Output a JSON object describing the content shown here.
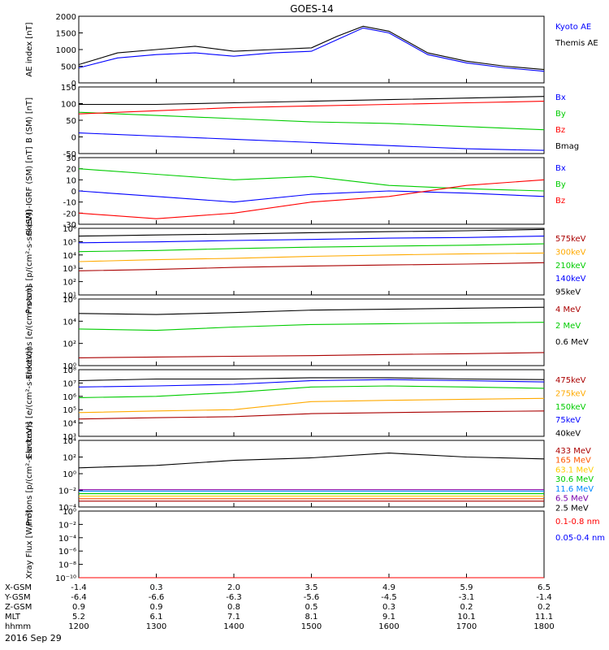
{
  "title": "GOES-14",
  "date_label": "2016 Sep 29",
  "footer": {
    "row_labels": [
      "X-GSM",
      "Y-GSM",
      "Z-GSM",
      "MLT",
      "hhmm"
    ],
    "rows": [
      [
        "-1.4",
        "0.3",
        "2.0",
        "3.5",
        "4.9",
        "5.9",
        "6.5"
      ],
      [
        "-6.4",
        "-6.6",
        "-6.3",
        "-5.6",
        "-4.5",
        "-3.1",
        "-1.4"
      ],
      [
        "0.9",
        "0.9",
        "0.8",
        "0.5",
        "0.3",
        "0.2",
        "0.2"
      ],
      [
        "5.2",
        "6.1",
        "7.1",
        "8.1",
        "9.1",
        "10.1",
        "11.1"
      ],
      [
        "1200",
        "1300",
        "1400",
        "1500",
        "1600",
        "1700",
        "1800"
      ]
    ]
  },
  "chart_data": [
    {
      "type": "line",
      "ylabel": "AE index [nT]",
      "scale": "linear",
      "ylim": [
        0,
        2000
      ],
      "ticks": [
        "0",
        "500",
        "1000",
        "1500",
        "2000"
      ],
      "series": [
        {
          "name": "Kyoto AE",
          "color": "#0000ff",
          "x": [
            "1200",
            "1230",
            "1300",
            "1330",
            "1400",
            "1430",
            "1500",
            "1520",
            "1540",
            "1600",
            "1630",
            "1700",
            "1730",
            "1800"
          ],
          "values": [
            450,
            750,
            850,
            900,
            800,
            900,
            950,
            1300,
            1650,
            1500,
            850,
            600,
            450,
            350
          ]
        },
        {
          "name": "Themis AE",
          "color": "#000000",
          "x": [
            "1200",
            "1230",
            "1300",
            "1330",
            "1400",
            "1430",
            "1500",
            "1520",
            "1540",
            "1600",
            "1630",
            "1700",
            "1730",
            "1800"
          ],
          "values": [
            550,
            900,
            1000,
            1100,
            950,
            1000,
            1050,
            1400,
            1700,
            1550,
            900,
            650,
            500,
            400
          ]
        }
      ]
    },
    {
      "type": "line",
      "ylabel": "B (SM) [nT]",
      "scale": "linear",
      "ylim": [
        -60,
        150
      ],
      "ticks": [
        "-50",
        "0",
        "50",
        "100",
        "150"
      ],
      "series": [
        {
          "name": "Bx",
          "color": "#0000ff",
          "x": [
            "1200",
            "1300",
            "1400",
            "1500",
            "1600",
            "1700",
            "1800"
          ],
          "values": [
            5,
            -5,
            -15,
            -25,
            -35,
            -45,
            -50
          ]
        },
        {
          "name": "By",
          "color": "#00cc00",
          "x": [
            "1200",
            "1300",
            "1400",
            "1500",
            "1600",
            "1700",
            "1800"
          ],
          "values": [
            70,
            60,
            50,
            40,
            35,
            25,
            15
          ]
        },
        {
          "name": "Bz",
          "color": "#ff0000",
          "x": [
            "1200",
            "1300",
            "1400",
            "1500",
            "1600",
            "1700",
            "1800"
          ],
          "values": [
            65,
            75,
            85,
            90,
            95,
            100,
            105
          ]
        },
        {
          "name": "Bmag",
          "color": "#000000",
          "x": [
            "1200",
            "1300",
            "1400",
            "1500",
            "1600",
            "1700",
            "1800"
          ],
          "values": [
            95,
            95,
            100,
            105,
            110,
            115,
            120
          ]
        }
      ]
    },
    {
      "type": "line",
      "ylabel": "B (SM)-IGRF (SM) [nT]",
      "scale": "linear",
      "ylim": [
        -30,
        30
      ],
      "ticks": [
        "-30",
        "-20",
        "-10",
        "0",
        "10",
        "20",
        "30"
      ],
      "series": [
        {
          "name": "Bx",
          "color": "#0000ff",
          "x": [
            "1200",
            "1300",
            "1400",
            "1500",
            "1600",
            "1700",
            "1800"
          ],
          "values": [
            0,
            -5,
            -10,
            -3,
            0,
            -2,
            -5
          ]
        },
        {
          "name": "By",
          "color": "#00cc00",
          "x": [
            "1200",
            "1300",
            "1400",
            "1500",
            "1600",
            "1700",
            "1800"
          ],
          "values": [
            20,
            15,
            10,
            13,
            5,
            2,
            0
          ]
        },
        {
          "name": "Bz",
          "color": "#ff0000",
          "x": [
            "1200",
            "1300",
            "1400",
            "1500",
            "1600",
            "1700",
            "1800"
          ],
          "values": [
            -20,
            -25,
            -20,
            -10,
            -5,
            5,
            10
          ]
        }
      ]
    },
    {
      "type": "line",
      "ylabel": "Protons [p/(cm²-s-sr-keV)]",
      "scale": "log",
      "ylim": [
        1,
        1000000
      ],
      "ticks": [
        "10¹",
        "10²",
        "10³",
        "10⁴",
        "10⁵",
        "10⁶"
      ],
      "series": [
        {
          "name": "575keV",
          "color": "#aa0000",
          "x": [
            "1200",
            "1300",
            "1400",
            "1500",
            "1600",
            "1700",
            "1800"
          ],
          "values": [
            150,
            200,
            300,
            400,
            500,
            600,
            800
          ]
        },
        {
          "name": "300keV",
          "color": "#ffaa00",
          "x": [
            "1200",
            "1300",
            "1400",
            "1500",
            "1600",
            "1700",
            "1800"
          ],
          "values": [
            1000,
            1500,
            2000,
            3000,
            4000,
            5000,
            6000
          ]
        },
        {
          "name": "210keV",
          "color": "#00cc00",
          "x": [
            "1200",
            "1300",
            "1400",
            "1500",
            "1600",
            "1700",
            "1800"
          ],
          "values": [
            8000,
            10000,
            15000,
            20000,
            25000,
            30000,
            40000
          ]
        },
        {
          "name": "140keV",
          "color": "#0000ff",
          "x": [
            "1200",
            "1300",
            "1400",
            "1500",
            "1600",
            "1700",
            "1800"
          ],
          "values": [
            50000,
            60000,
            80000,
            100000,
            130000,
            150000,
            200000
          ]
        },
        {
          "name": "95keV",
          "color": "#000000",
          "x": [
            "1200",
            "1300",
            "1400",
            "1500",
            "1600",
            "1700",
            "1800"
          ],
          "values": [
            200000,
            250000,
            300000,
            400000,
            500000,
            600000,
            800000
          ]
        }
      ]
    },
    {
      "type": "line",
      "ylabel": "Electrons [e/(cm²-s-sr)]",
      "scale": "log",
      "ylim": [
        1,
        1000000
      ],
      "ticks": [
        "10⁰",
        "10²",
        "10⁴",
        "10⁶"
      ],
      "series": [
        {
          "name": "4 MeV",
          "color": "#aa0000",
          "x": [
            "1200",
            "1300",
            "1400",
            "1500",
            "1600",
            "1700",
            "1800"
          ],
          "values": [
            5,
            6,
            7,
            8,
            10,
            12,
            15
          ]
        },
        {
          "name": "2 MeV",
          "color": "#00cc00",
          "x": [
            "1200",
            "1300",
            "1400",
            "1500",
            "1600",
            "1700",
            "1800"
          ],
          "values": [
            2000,
            1500,
            3000,
            5000,
            6000,
            7000,
            8000
          ]
        },
        {
          "name": "0.6 MeV",
          "color": "#000000",
          "x": [
            "1200",
            "1300",
            "1400",
            "1500",
            "1600",
            "1700",
            "1800"
          ],
          "values": [
            50000,
            40000,
            60000,
            100000,
            120000,
            150000,
            180000
          ]
        }
      ]
    },
    {
      "type": "line",
      "ylabel": "Electrons [e/(cm²-s-sr-keV)]",
      "scale": "log",
      "ylim": [
        1000,
        100000000
      ],
      "ticks": [
        "10³",
        "10⁴",
        "10⁵",
        "10⁶",
        "10⁷",
        "10⁸"
      ],
      "series": [
        {
          "name": "475keV",
          "color": "#aa0000",
          "x": [
            "1200",
            "1300",
            "1400",
            "1500",
            "1600",
            "1700",
            "1800"
          ],
          "values": [
            20000,
            25000,
            30000,
            50000,
            60000,
            70000,
            80000
          ]
        },
        {
          "name": "275keV",
          "color": "#ffaa00",
          "x": [
            "1200",
            "1300",
            "1400",
            "1500",
            "1600",
            "1700",
            "1800"
          ],
          "values": [
            60000,
            80000,
            100000,
            400000,
            500000,
            600000,
            700000
          ]
        },
        {
          "name": "150keV",
          "color": "#00cc00",
          "x": [
            "1200",
            "1300",
            "1400",
            "1500",
            "1600",
            "1700",
            "1800"
          ],
          "values": [
            800000,
            1000000,
            2000000,
            5000000,
            6000000,
            5000000,
            4000000
          ]
        },
        {
          "name": "75keV",
          "color": "#0000ff",
          "x": [
            "1200",
            "1300",
            "1400",
            "1500",
            "1600",
            "1700",
            "1800"
          ],
          "values": [
            5000000,
            6000000,
            8000000,
            15000000,
            18000000,
            15000000,
            12000000
          ]
        },
        {
          "name": "40keV",
          "color": "#000000",
          "x": [
            "1200",
            "1300",
            "1400",
            "1500",
            "1600",
            "1700",
            "1800"
          ],
          "values": [
            15000000,
            20000000,
            20000000,
            25000000,
            25000000,
            20000000,
            18000000
          ]
        }
      ]
    },
    {
      "type": "line",
      "ylabel": "Protons [p/(cm²-s-sr-keV)]",
      "scale": "log",
      "ylim": [
        0.0001,
        10000
      ],
      "ticks": [
        "10⁻⁴",
        "10⁻²",
        "10⁰",
        "10²",
        "10⁴"
      ],
      "series": [
        {
          "name": "433 MeV",
          "color": "#aa0000",
          "x": [
            "1200",
            "1300",
            "1400",
            "1500",
            "1600",
            "1700",
            "1800"
          ],
          "values": [
            0.0005,
            0.0005,
            0.0005,
            0.0005,
            0.0005,
            0.0005,
            0.0005
          ]
        },
        {
          "name": "165 MeV",
          "color": "#ff5500",
          "x": [
            "1200",
            "1300",
            "1400",
            "1500",
            "1600",
            "1700",
            "1800"
          ],
          "values": [
            0.001,
            0.001,
            0.001,
            0.001,
            0.001,
            0.001,
            0.001
          ]
        },
        {
          "name": "63.1 MeV",
          "color": "#ffcc00",
          "x": [
            "1200",
            "1300",
            "1400",
            "1500",
            "1600",
            "1700",
            "1800"
          ],
          "values": [
            0.002,
            0.002,
            0.002,
            0.002,
            0.002,
            0.002,
            0.002
          ]
        },
        {
          "name": "30.6 MeV",
          "color": "#00cc00",
          "x": [
            "1200",
            "1300",
            "1400",
            "1500",
            "1600",
            "1700",
            "1800"
          ],
          "values": [
            0.004,
            0.004,
            0.004,
            0.004,
            0.004,
            0.004,
            0.004
          ]
        },
        {
          "name": "11.6 MeV",
          "color": "#0088ff",
          "x": [
            "1200",
            "1300",
            "1400",
            "1500",
            "1600",
            "1700",
            "1800"
          ],
          "values": [
            0.008,
            0.008,
            0.008,
            0.008,
            0.008,
            0.008,
            0.008
          ]
        },
        {
          "name": "6.5 MeV",
          "color": "#7700aa",
          "x": [
            "1200",
            "1300",
            "1400",
            "1500",
            "1600",
            "1700",
            "1800"
          ],
          "values": [
            0.012,
            0.012,
            0.012,
            0.012,
            0.012,
            0.012,
            0.012
          ]
        },
        {
          "name": "2.5 MeV",
          "color": "#000000",
          "x": [
            "1200",
            "1300",
            "1400",
            "1500",
            "1600",
            "1700",
            "1800"
          ],
          "values": [
            5,
            10,
            40,
            80,
            300,
            100,
            60
          ]
        }
      ]
    },
    {
      "type": "line",
      "ylabel": "Xray Flux [W/m²]",
      "scale": "log",
      "ylim": [
        1e-10,
        1
      ],
      "ticks": [
        "10⁻¹⁰",
        "10⁻⁸",
        "10⁻⁶",
        "10⁻⁴",
        "10⁻²",
        "10⁰"
      ],
      "series": [
        {
          "name": "0.1-0.8 nm",
          "color": "#ff0000",
          "x": [
            "1200",
            "1800"
          ],
          "values": [
            1e-10,
            1e-10
          ]
        },
        {
          "name": "0.05-0.4 nm",
          "color": "#0000ff",
          "x": [],
          "values": []
        }
      ]
    }
  ]
}
